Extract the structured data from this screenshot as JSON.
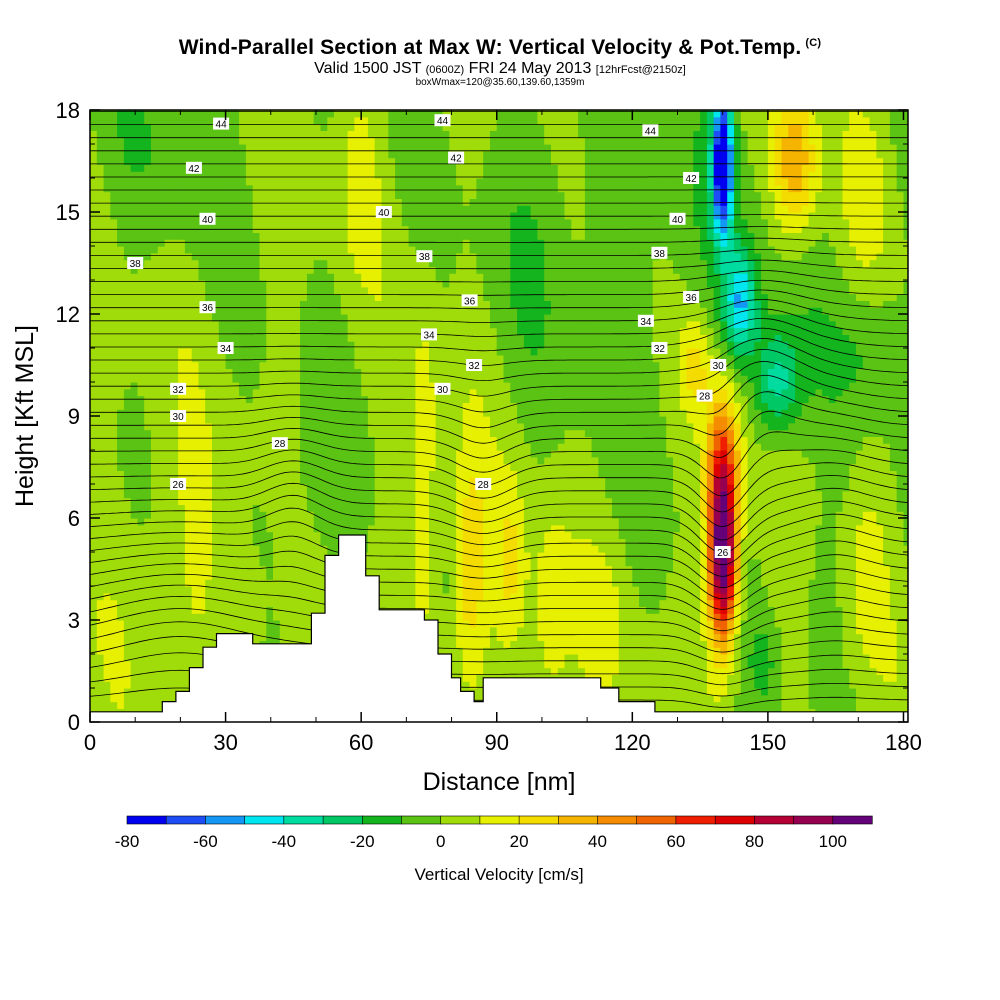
{
  "header": {
    "title": "Wind-Parallel Section at Max W: Vertical Velocity & Pot.Temp.",
    "copyright": "(C)",
    "valid_prefix": "Valid 1500 JST",
    "utc": "(0600Z)",
    "valid_date": "FRI 24 May 2013",
    "forecast": "[12hrFcst@2150z]",
    "box_info": "boxWmax=120@35.60,139.60,1359m"
  },
  "chart_data": {
    "type": "heatmap",
    "xlabel": "Distance [nm]",
    "ylabel": "Height [Kft MSL]",
    "xlim": [
      0,
      181
    ],
    "ylim": [
      0,
      18
    ],
    "xticks": [
      0,
      30,
      60,
      90,
      120,
      150,
      180
    ],
    "yticks": [
      0,
      3,
      6,
      9,
      12,
      15,
      18
    ],
    "colorbar": {
      "title": "Vertical Velocity [cm/s]",
      "levels": [
        -80,
        -70,
        -60,
        -50,
        -40,
        -30,
        -20,
        -10,
        0,
        10,
        20,
        30,
        40,
        50,
        60,
        70,
        80,
        90,
        100,
        110
      ],
      "tick_labels": [
        "-80",
        "-60",
        "-40",
        "-20",
        "0",
        "20",
        "40",
        "60",
        "80",
        "100"
      ],
      "colors": [
        "#0000f0",
        "#1e4cf5",
        "#1496f5",
        "#00e6f0",
        "#00dca0",
        "#00c864",
        "#14b41e",
        "#5ac314",
        "#a0dc0a",
        "#e6f000",
        "#f5dc00",
        "#f5b400",
        "#f58c00",
        "#f06400",
        "#f01e00",
        "#dc0000",
        "#b40032",
        "#960050",
        "#640078"
      ]
    },
    "velocity_features": [
      {
        "x": 140,
        "y": 5.0,
        "value": 115,
        "note": "strong updraft core"
      },
      {
        "x": 140,
        "y": 15.5,
        "value": -75,
        "note": "downdraft aloft"
      },
      {
        "x": 84,
        "y": 4.0,
        "value": 35,
        "note": "updraft band"
      },
      {
        "x": 47,
        "y": 5.5,
        "value": -28,
        "note": "weak downdraft"
      },
      {
        "x": 155,
        "y": 16.5,
        "value": 35,
        "note": "updraft aloft"
      }
    ],
    "isentropes": [
      {
        "label": "26",
        "x": 19.5,
        "y": 7.0
      },
      {
        "label": "26",
        "x": 140,
        "y": 5.0
      },
      {
        "label": "28",
        "x": 42,
        "y": 8.2
      },
      {
        "label": "28",
        "x": 87,
        "y": 7.0
      },
      {
        "label": "28",
        "x": 136,
        "y": 9.6
      },
      {
        "label": "30",
        "x": 19.5,
        "y": 9.0
      },
      {
        "label": "30",
        "x": 78,
        "y": 9.8
      },
      {
        "label": "30",
        "x": 139,
        "y": 10.5
      },
      {
        "label": "32",
        "x": 19.5,
        "y": 9.8
      },
      {
        "label": "32",
        "x": 85,
        "y": 10.5
      },
      {
        "label": "32",
        "x": 126,
        "y": 11.0
      },
      {
        "label": "34",
        "x": 30,
        "y": 11.0
      },
      {
        "label": "34",
        "x": 75,
        "y": 11.4
      },
      {
        "label": "34",
        "x": 123,
        "y": 11.8
      },
      {
        "label": "36",
        "x": 26,
        "y": 12.2
      },
      {
        "label": "36",
        "x": 84,
        "y": 12.4
      },
      {
        "label": "36",
        "x": 133,
        "y": 12.5
      },
      {
        "label": "38",
        "x": 10,
        "y": 13.5
      },
      {
        "label": "38",
        "x": 74,
        "y": 13.7
      },
      {
        "label": "38",
        "x": 126,
        "y": 13.8
      },
      {
        "label": "40",
        "x": 26,
        "y": 14.8
      },
      {
        "label": "40",
        "x": 65,
        "y": 15.0
      },
      {
        "label": "40",
        "x": 130,
        "y": 14.8
      },
      {
        "label": "42",
        "x": 23,
        "y": 16.3
      },
      {
        "label": "42",
        "x": 81,
        "y": 16.6
      },
      {
        "label": "42",
        "x": 133,
        "y": 16.0
      },
      {
        "label": "44",
        "x": 29,
        "y": 17.6
      },
      {
        "label": "44",
        "x": 78,
        "y": 17.7
      },
      {
        "label": "44",
        "x": 124,
        "y": 17.4
      }
    ],
    "terrain": [
      [
        0,
        0.3
      ],
      [
        16,
        0.3
      ],
      [
        16,
        0.6
      ],
      [
        19,
        0.6
      ],
      [
        19,
        0.9
      ],
      [
        22,
        0.9
      ],
      [
        22,
        1.6
      ],
      [
        25,
        1.6
      ],
      [
        25,
        2.2
      ],
      [
        28,
        2.2
      ],
      [
        28,
        2.6
      ],
      [
        36,
        2.6
      ],
      [
        36,
        2.3
      ],
      [
        49,
        2.3
      ],
      [
        49,
        3.2
      ],
      [
        52,
        3.2
      ],
      [
        52,
        4.9
      ],
      [
        55,
        4.9
      ],
      [
        55,
        5.5
      ],
      [
        61,
        5.5
      ],
      [
        61,
        4.3
      ],
      [
        64,
        4.3
      ],
      [
        64,
        3.3
      ],
      [
        74,
        3.3
      ],
      [
        74,
        3.0
      ],
      [
        77,
        3.0
      ],
      [
        77,
        2.0
      ],
      [
        80,
        2.0
      ],
      [
        80,
        1.3
      ],
      [
        82,
        1.3
      ],
      [
        82,
        0.9
      ],
      [
        85,
        0.9
      ],
      [
        85,
        0.6
      ],
      [
        87,
        0.6
      ],
      [
        87,
        1.3
      ],
      [
        113,
        1.3
      ],
      [
        113,
        1.0
      ],
      [
        117,
        1.0
      ],
      [
        117,
        0.6
      ],
      [
        125,
        0.6
      ],
      [
        125,
        0.3
      ],
      [
        181,
        0.3
      ]
    ]
  }
}
